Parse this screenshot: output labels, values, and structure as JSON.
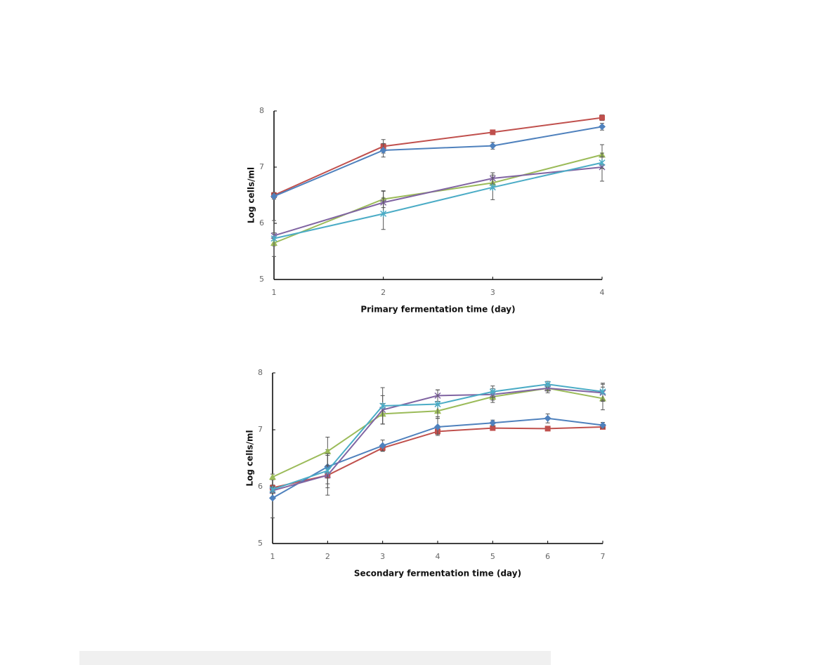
{
  "chart_data": [
    {
      "type": "line",
      "xlabel": "Primary fermentation time (day)",
      "ylabel": "Log cells/ml",
      "x": [
        1,
        2,
        3,
        4
      ],
      "xlim": [
        1,
        4
      ],
      "xticks": [
        1,
        2,
        3,
        4
      ],
      "ylim": [
        5,
        8
      ],
      "yticks": [
        5,
        6,
        7,
        8
      ],
      "series": [
        {
          "color": "#c0504d",
          "marker": "square",
          "values": [
            6.5,
            7.37,
            7.62,
            7.88
          ],
          "errors": [
            0.05,
            0.12,
            0.03,
            0.05
          ]
        },
        {
          "color": "#4f81bd",
          "marker": "diamond",
          "values": [
            6.48,
            7.3,
            7.38,
            7.72
          ],
          "errors": [
            0.05,
            0.12,
            0.06,
            0.06
          ]
        },
        {
          "color": "#9bbb59",
          "marker": "triangle",
          "values": [
            5.65,
            6.43,
            6.72,
            7.22
          ],
          "errors": [
            0.05,
            0.15,
            0.1,
            0.18
          ]
        },
        {
          "color": "#8064a2",
          "marker": "cross",
          "values": [
            5.78,
            6.37,
            6.8,
            7.0
          ],
          "errors": [
            0.05,
            0.2,
            0.1,
            0.25
          ]
        },
        {
          "color": "#4bacc6",
          "marker": "star",
          "values": [
            5.73,
            6.17,
            6.64,
            7.08
          ],
          "errors": [
            0.32,
            0.28,
            0.22,
            0.1
          ]
        }
      ]
    },
    {
      "type": "line",
      "xlabel": "Secondary fermentation time (day)",
      "ylabel": "Log cells/ml",
      "x": [
        1,
        2,
        3,
        4,
        5,
        6,
        7
      ],
      "xlim": [
        1,
        7
      ],
      "xticks": [
        1,
        2,
        3,
        4,
        5,
        6,
        7
      ],
      "ylim": [
        5,
        8
      ],
      "yticks": [
        5,
        6,
        7,
        8
      ],
      "series": [
        {
          "color": "#c0504d",
          "marker": "square",
          "values": [
            5.98,
            6.2,
            6.68,
            6.97,
            7.03,
            7.02,
            7.05
          ],
          "errors": [
            0.05,
            0.05,
            0.05,
            0.05,
            0.03,
            0.03,
            0.03
          ]
        },
        {
          "color": "#4f81bd",
          "marker": "diamond",
          "values": [
            5.8,
            6.35,
            6.72,
            7.05,
            7.12,
            7.2,
            7.08
          ],
          "errors": [
            0.35,
            0.3,
            0.1,
            0.15,
            0.05,
            0.08,
            0.05
          ]
        },
        {
          "color": "#9bbb59",
          "marker": "triangle",
          "values": [
            6.17,
            6.62,
            7.28,
            7.33,
            7.58,
            7.73,
            7.55
          ],
          "errors": [
            0.05,
            0.25,
            0.18,
            0.1,
            0.1,
            0.08,
            0.2
          ]
        },
        {
          "color": "#8064a2",
          "marker": "cross",
          "values": [
            5.93,
            6.2,
            7.35,
            7.6,
            7.62,
            7.73,
            7.65
          ],
          "errors": [
            0.05,
            0.35,
            0.25,
            0.1,
            0.1,
            0.05,
            0.15
          ]
        },
        {
          "color": "#4bacc6",
          "marker": "star",
          "values": [
            5.95,
            6.28,
            7.42,
            7.45,
            7.67,
            7.8,
            7.67
          ],
          "errors": [
            0.05,
            0.3,
            0.32,
            0.25,
            0.1,
            0.05,
            0.15
          ]
        }
      ]
    }
  ]
}
